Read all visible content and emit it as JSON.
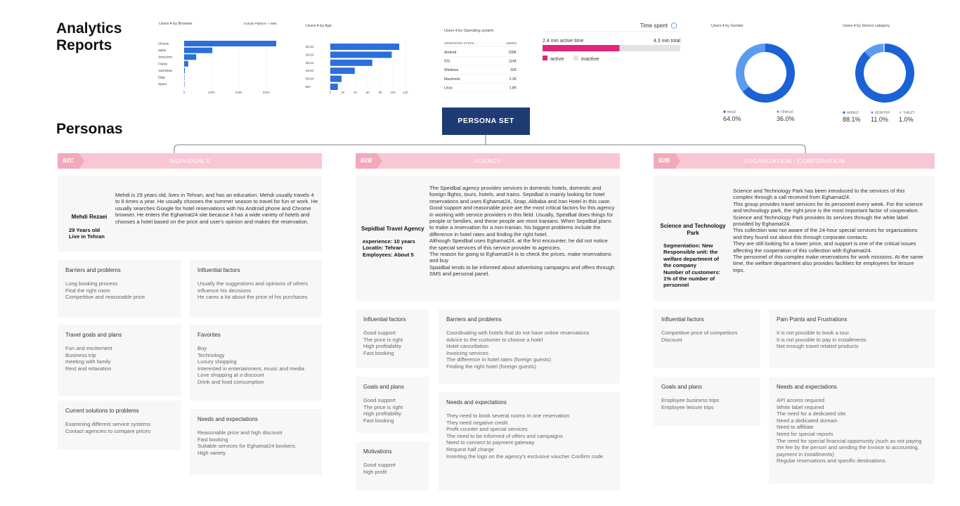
{
  "header": {
    "title": "Analytics Reports"
  },
  "chart_data": [
    {
      "type": "bar",
      "orientation": "horizontal",
      "title": "Users ▾ by Browser",
      "subtitle": "Include Platform + Web",
      "categories": [
        "Chrome",
        "Safari",
        "Samsung Internet",
        "Firefox",
        "Android Webview",
        "Edge",
        "Opera"
      ],
      "values": [
        336000,
        103000,
        44000,
        15000,
        3000,
        1000,
        500
      ],
      "color": "#2a6fdb",
      "xlim": [
        0,
        350000
      ],
      "xticks": [
        0,
        {
          "value": 100000,
          "label": "100K"
        },
        {
          "value": 200000,
          "label": "200K"
        },
        {
          "value": 300000,
          "label": "300K"
        }
      ]
    },
    {
      "type": "bar",
      "orientation": "horizontal",
      "title": "Users ▾ by Age",
      "categories": [
        "25-34",
        "18-24",
        "35-44",
        "45-54",
        "55-64",
        "65+"
      ],
      "values": [
        11000,
        9800,
        6700,
        3900,
        1800,
        1200
      ],
      "color": "#2a6fdb",
      "xlim": [
        0,
        12000
      ],
      "xticks": [
        0,
        {
          "value": 2000,
          "label": "2K"
        },
        {
          "value": 4000,
          "label": "4K"
        },
        {
          "value": 6000,
          "label": "6K"
        },
        {
          "value": 8000,
          "label": "8K"
        },
        {
          "value": 10000,
          "label": "10K"
        },
        {
          "value": 12000,
          "label": "12K"
        }
      ]
    },
    {
      "type": "pie",
      "title": "Users ▾ by Gender",
      "categories": [
        "MALE",
        "FEMALE"
      ],
      "values": [
        64.0,
        36.0
      ],
      "value_labels": [
        "64.0%",
        "36.0%"
      ],
      "colors": [
        "#1a62d6",
        "#5b9cf0"
      ]
    },
    {
      "type": "pie",
      "title": "Users ▾ by Device category",
      "categories": [
        "MOBILE",
        "DESKTOP",
        "TABLET"
      ],
      "values": [
        88.1,
        11.0,
        1.0
      ],
      "value_labels": [
        "88.1%",
        "11.0%",
        "1.0%"
      ],
      "colors": [
        "#1a62d6",
        "#5b9cf0",
        "#a9cbf7"
      ]
    }
  ],
  "os_table": {
    "title": "Users ▾ by Operating system",
    "headers": [
      "OPERATING SYSTE...",
      "USERS"
    ],
    "rows": [
      [
        "Android",
        "339K"
      ],
      [
        "iOS",
        "114K"
      ],
      [
        "Windows",
        "32K"
      ],
      [
        "Macintosh",
        "2.2K"
      ],
      [
        "Linux",
        "1.8K"
      ]
    ]
  },
  "time_spent": {
    "title": "Time spent",
    "active_label": "2.4 min active time",
    "total_label": "4.3 min total",
    "active": 2.4,
    "total": 4.3,
    "legend": [
      "active",
      "inactive"
    ],
    "colors": [
      "#e0267a",
      "#e3e3e3"
    ]
  },
  "personas": {
    "title": "Personas",
    "set_label": "PERSONA SET",
    "groups": [
      {
        "tag": "B2C",
        "title": "INDIVIDUALS",
        "name": "Mehdi Rezaei",
        "details": [
          "29 Years old",
          "Live in Tehran"
        ],
        "description": [
          "Mehdi is 29 years old, lives in Tehran, and has an education. Mehdi usually travels 4 to 6 times a year. He usually chooses the summer season to travel for fun or work. He usually searches Google for hotel reservations with his Android phone and Chrome browser. He enters the Eghamat24 site because it has a wide variety of hotels and chooses a hotel based on the price and user's opinion and makes the reservation."
        ],
        "cards": [
          {
            "title": "Barriers and problems",
            "items": [
              "Long booking process",
              "Find the right room",
              "Competitive and reasonable price"
            ]
          },
          {
            "title": "Influential factors",
            "items": [
              "Usually the suggestions and opinions of others influence his decisions",
              "He cares a lot about the price of his purchases"
            ]
          },
          {
            "title": "Travel goals and plans",
            "items": [
              "Fun and excitement",
              "Business trip",
              "meeting with family",
              "Rest and relaxation"
            ]
          },
          {
            "title": "Favorites",
            "items": [
              "Buy",
              "Technology",
              "Luxury shopping",
              "Interested in entertainment, music and media",
              "Love shopping at a discount",
              "Drink and food consumption"
            ]
          },
          {
            "title": "Current solutions to problems",
            "items": [
              "Examining different service systems",
              "Contact agencies to compare prices"
            ]
          },
          {
            "title": "Needs and expectations",
            "items": [
              "Reasonable price and high discount",
              "Fast booking",
              "Suitable services for Eghamat24 bookers.",
              "High variety"
            ]
          }
        ]
      },
      {
        "tag": "B2B",
        "title": "AGENCY",
        "name": "Sepidbal Travel Agency",
        "details": [
          "experience: 10 years",
          "Locatin: Tehran",
          "Employees: About 5"
        ],
        "description": [
          "The Speidbal agency provides services in domestic hotels, domestic and foreign flights, tours, hotels, and trains. Sepidbal is mainly looking for hotel reservations and uses Eghamat24, Snap, Alibaba and Iran Hotel in this case.",
          "Good support and reasonable price are the most critical factors for this agency in working with service providers in this field. Usually, Speidbal does things for people or families, and these people are most Iranians. When Sepidbal plans to make a reservation for a non-Iranian, his biggest problems include the difference in hotel rates and finding the right hotel.",
          "Although Speidbal uses Eghamat24, at the first encounter, he did not notice the special services of this service provider to agencies.",
          "The reason for going to Eghamat24 is to check the prices, make reservations and buy",
          "Spaidbal tends to be informed about advertising campaigns and offers through SMS and personal panel."
        ],
        "cards": [
          {
            "title": "Influential factors",
            "items": [
              "Good support",
              "The price is right",
              "High profitability",
              "Fast booking"
            ]
          },
          {
            "title": "Barriers and problems",
            "items": [
              "Coordinating with hotels that do not have online reservations",
              "Advice to the customer to choose a hotel",
              "Hotel cancellation",
              "Invoicing services",
              "The difference in hotel rates (foreign guests)",
              "Finding the right hotel (foreign guests)"
            ]
          },
          {
            "title": "Goals and plans",
            "items": [
              "Good support",
              "The price is right",
              "High profitability",
              "Fast booking"
            ]
          },
          {
            "title": "Needs and expectations",
            "items": [
              "They need to book several rooms in one reservation",
              "They need negative credit",
              "Profit counter and special services",
              "The need to be informed of offers and campaigns",
              "Need to connect to payment gateway",
              "Request half charge",
              "Inserting the logo on the agency's exclusive voucher Confirm code"
            ]
          },
          {
            "title": "Motivations",
            "items": [
              "Good support",
              "high profit"
            ]
          }
        ]
      },
      {
        "tag": "B2B",
        "title": "OSGANIZATION / CORPORATION",
        "name": "Science and Technology Park",
        "details": [
          "Segmentation: New",
          "Responsible unit: the welfare department of the company",
          "Number of customers: 1% of the number of personnel"
        ],
        "description": [
          "Science and Technology Park has been introduced to the services of this complex through a call received from Eghamat24.",
          "This group provides travel services for its personnel every week. For the science and technology park, the right price is the most important factor of cooperation.",
          "Science and Technology Park provides its services through the white label provided by Eghamat24.",
          "This collection was not aware of the 24-hour special services for organizations and they found out about this through corporate contacts.",
          "They are still looking for a lower price, and support is one of the critical issues affecting the cooperation of this collection with Eghamat24.",
          "The personnel of this complex make reservations for work missions. At the same time, the welfare department also provides facilities for employees for leisure trips."
        ],
        "cards": [
          {
            "title": "Influential factors",
            "items": [
              "Competitive price of competitors",
              "Discount"
            ]
          },
          {
            "title": "Pain Points and Frustrations",
            "items": [
              "It is not possible to book a tour",
              "It is not possible to pay in installments",
              "Not enough travel related products"
            ]
          },
          {
            "title": "Goals and plans",
            "items": [
              "Employee business trips",
              "Employee leisure trips"
            ]
          },
          {
            "title": "Needs and expectations",
            "items": [
              "API access required",
              "White label required",
              "The need for a dedicated site",
              "Need a dedicated domain",
              "Need to affiliate",
              "Need for special reports",
              "The need for special financial opportunity (such as not paying the fee by the person and sending the invoice to accounting, payment in installments)",
              "Regular reservations and specific destinations"
            ]
          }
        ]
      }
    ]
  }
}
